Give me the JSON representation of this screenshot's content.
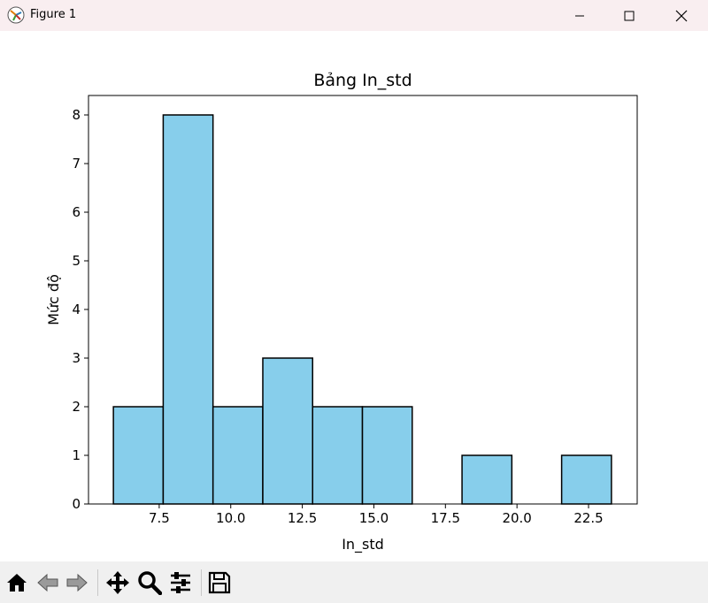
{
  "window": {
    "title": "Figure 1",
    "controls": [
      "minimize-icon",
      "maximize-icon",
      "close-icon"
    ]
  },
  "toolbar": {
    "buttons": [
      "home-icon",
      "back-icon",
      "forward-icon",
      "pan-icon",
      "zoom-icon",
      "configure-subplots-icon",
      "save-icon"
    ]
  },
  "colors": {
    "bar_fill": "#87ceeb",
    "bar_edge": "#000000",
    "titlebar": "#f9eef0",
    "toolbar": "#f0f0f0"
  },
  "chart_data": {
    "type": "bar",
    "title": "Bảng In_std",
    "xlabel": "In_std",
    "ylabel": "Mức độ",
    "xlim": [
      5.03,
      24.2
    ],
    "ylim": [
      0,
      8.4
    ],
    "bin_edges": [
      5.9,
      7.64,
      9.38,
      11.12,
      12.86,
      14.6,
      16.34,
      18.08,
      19.82,
      21.56,
      23.3
    ],
    "values": [
      2,
      8,
      2,
      3,
      2,
      2,
      0,
      1,
      0,
      1
    ],
    "xticks": [
      7.5,
      10.0,
      12.5,
      15.0,
      17.5,
      20.0,
      22.5
    ],
    "xtick_labels": [
      "7.5",
      "10.0",
      "12.5",
      "15.0",
      "17.5",
      "20.0",
      "22.5"
    ],
    "yticks": [
      0,
      1,
      2,
      3,
      4,
      5,
      6,
      7,
      8
    ],
    "ytick_labels": [
      "0",
      "1",
      "2",
      "3",
      "4",
      "5",
      "6",
      "7",
      "8"
    ],
    "grid": false,
    "legend": "none"
  }
}
